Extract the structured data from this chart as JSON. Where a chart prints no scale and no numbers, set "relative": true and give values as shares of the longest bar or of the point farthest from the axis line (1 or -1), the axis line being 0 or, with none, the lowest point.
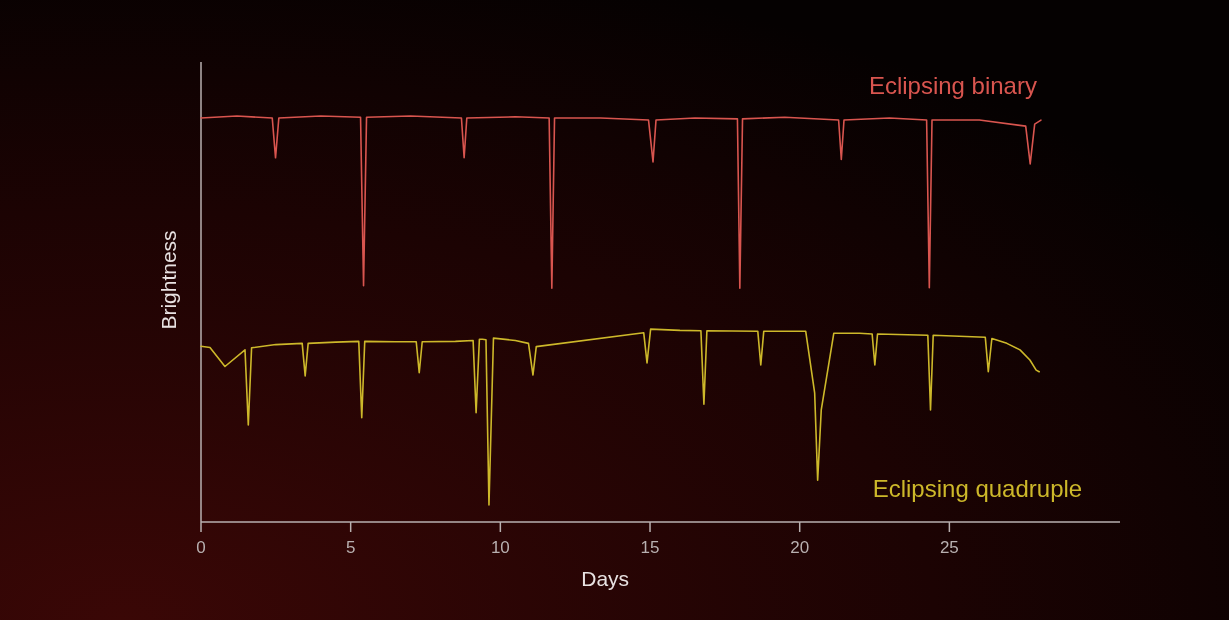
{
  "chart_data": {
    "type": "line",
    "relative": true,
    "xlabel": "Days",
    "ylabel": "Brightness",
    "xlim": [
      0,
      30.7
    ],
    "xticks": [
      0,
      5,
      10,
      15,
      20,
      25
    ],
    "series": [
      {
        "name": "Eclipsing binary",
        "color": "#d9554f",
        "x": [
          0,
          1.2,
          2.38,
          2.49,
          2.6,
          4,
          5.33,
          5.43,
          5.53,
          7,
          8.7,
          8.79,
          8.88,
          10.5,
          11.63,
          11.72,
          11.81,
          13.35,
          14.95,
          15.1,
          15.2,
          16.5,
          17.92,
          18.0,
          18.09,
          19.5,
          21.3,
          21.39,
          21.48,
          23,
          24.24,
          24.33,
          24.42,
          26,
          27.55,
          27.7,
          27.85,
          28.06
        ],
        "values": [
          0.995,
          1.0,
          0.995,
          0.897,
          0.995,
          1.0,
          0.997,
          0.582,
          0.997,
          1.0,
          0.995,
          0.897,
          0.995,
          0.998,
          0.995,
          0.576,
          0.995,
          0.995,
          0.99,
          0.887,
          0.99,
          0.995,
          0.993,
          0.576,
          0.993,
          0.997,
          0.99,
          0.893,
          0.99,
          0.995,
          0.99,
          0.577,
          0.99,
          0.99,
          0.975,
          0.882,
          0.98,
          0.99
        ]
      },
      {
        "name": "Eclipsing quadruple",
        "color": "#cdb82a",
        "x": [
          0,
          0.3,
          0.8,
          1.47,
          1.58,
          1.69,
          2.5,
          3.38,
          3.48,
          3.58,
          4.5,
          5.27,
          5.37,
          5.47,
          6.5,
          7.19,
          7.29,
          7.39,
          8.5,
          9.09,
          9.19,
          9.3,
          9.4,
          9.52,
          9.62,
          9.77,
          10.5,
          10.94,
          11.09,
          11.2,
          14.79,
          14.9,
          15.02,
          16,
          16.7,
          16.8,
          16.9,
          18.6,
          18.7,
          18.8,
          20.2,
          20.5,
          20.6,
          20.72,
          21.14,
          22,
          22.42,
          22.51,
          22.6,
          24.28,
          24.37,
          24.46,
          26.2,
          26.3,
          26.42,
          26.92,
          27.36,
          27.69,
          27.9,
          28.0
        ],
        "values": [
          0.433,
          0.43,
          0.383,
          0.424,
          0.239,
          0.429,
          0.437,
          0.44,
          0.36,
          0.44,
          0.443,
          0.445,
          0.257,
          0.445,
          0.444,
          0.444,
          0.368,
          0.444,
          0.445,
          0.447,
          0.269,
          0.45,
          0.45,
          0.449,
          0.042,
          0.453,
          0.447,
          0.44,
          0.362,
          0.432,
          0.466,
          0.392,
          0.475,
          0.472,
          0.471,
          0.29,
          0.471,
          0.47,
          0.387,
          0.47,
          0.47,
          0.318,
          0.103,
          0.276,
          0.465,
          0.465,
          0.463,
          0.387,
          0.463,
          0.46,
          0.276,
          0.46,
          0.455,
          0.37,
          0.452,
          0.44,
          0.424,
          0.399,
          0.374,
          0.37
        ]
      }
    ]
  }
}
